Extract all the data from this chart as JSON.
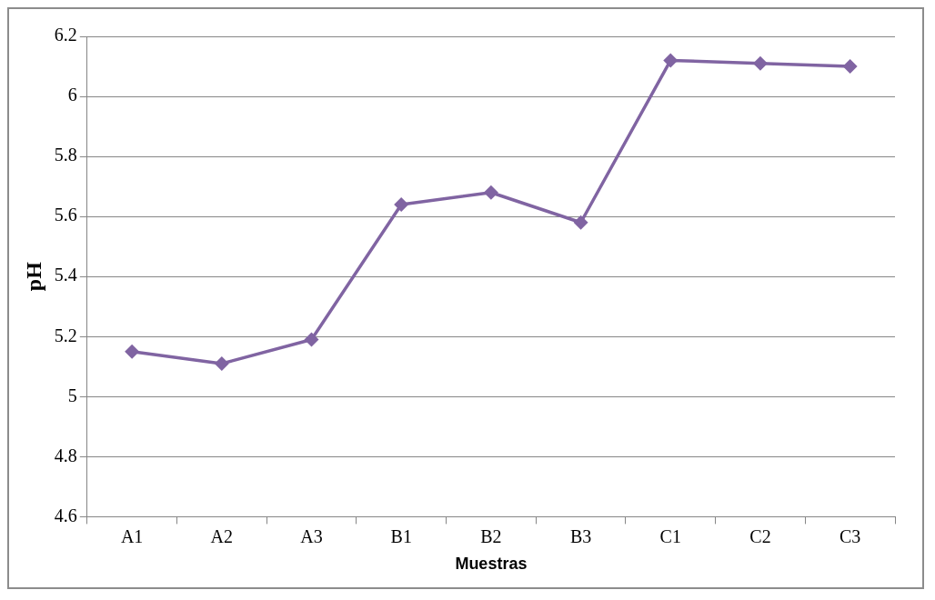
{
  "chart_data": {
    "type": "line",
    "xlabel": "Muestras",
    "ylabel": "pH",
    "categories": [
      "A1",
      "A2",
      "A3",
      "B1",
      "B2",
      "B3",
      "C1",
      "C2",
      "C3"
    ],
    "series": [
      {
        "color": "#8064a2",
        "values": [
          5.15,
          5.11,
          5.19,
          5.64,
          5.68,
          5.58,
          6.12,
          6.11,
          6.1
        ]
      }
    ],
    "ylim": [
      4.6,
      6.2
    ],
    "yticks": [
      4.6,
      4.8,
      5,
      5.2,
      5.4,
      5.6,
      5.8,
      6,
      6.2
    ],
    "grid": "y",
    "legend": false,
    "marker": "diamond",
    "line_style": "solid"
  }
}
